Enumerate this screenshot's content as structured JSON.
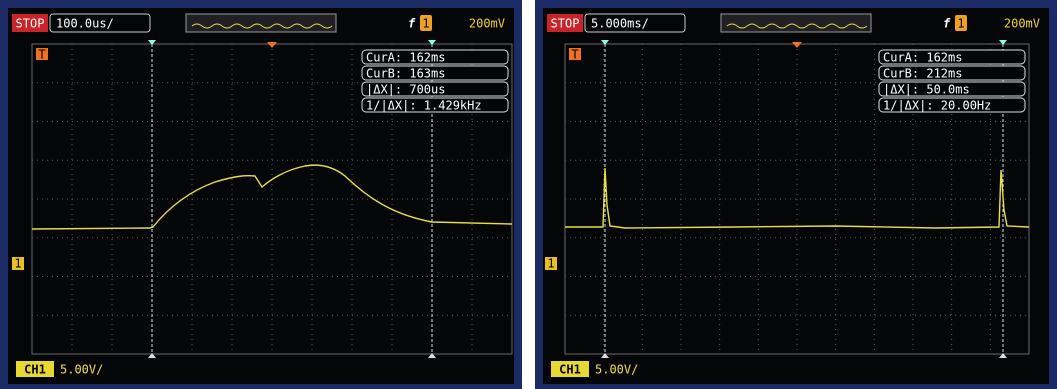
{
  "panels": [
    {
      "status": "STOP",
      "timebase": "100.0us/",
      "trigger_source": "1",
      "trigger_level": "200mV",
      "trigger_marker": "T",
      "ground_marker": "1",
      "readouts": [
        "CurA: 162ms",
        "CurB: 163ms",
        "|ΔX|: 700us",
        "1/|ΔX|: 1.429kHz"
      ],
      "channel": "CH1",
      "scale": "5.00V/"
    },
    {
      "status": "STOP",
      "timebase": "5.000ms/",
      "trigger_source": "1",
      "trigger_level": "200mV",
      "trigger_marker": "T",
      "ground_marker": "1",
      "readouts": [
        "CurA: 162ms",
        "CurB: 212ms",
        "|ΔX|: 50.0ms",
        "1/|ΔX|: 20.00Hz"
      ],
      "channel": "CH1",
      "scale": "5.00V/"
    }
  ]
}
